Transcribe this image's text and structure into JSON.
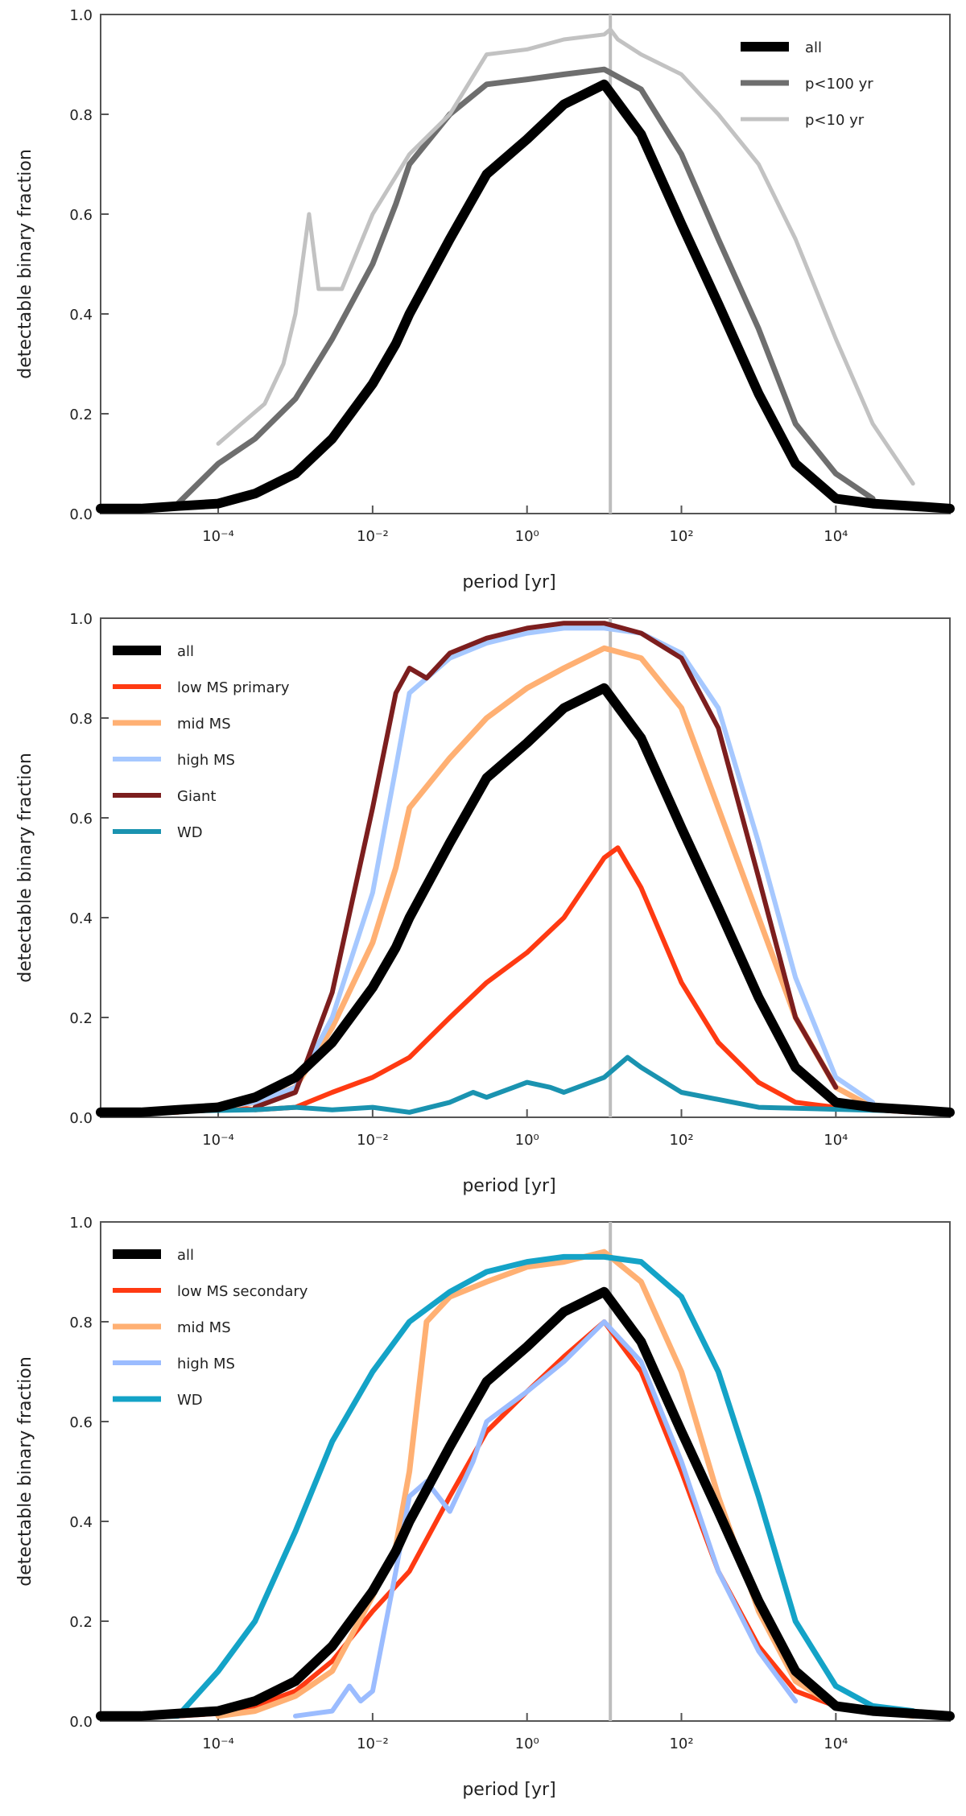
{
  "chart_data": [
    {
      "type": "line",
      "xscale": "log",
      "xlim": [
        3e-06,
        300000
      ],
      "ylim": [
        0,
        1
      ],
      "xlabel": "period [yr]",
      "ylabel": "detectable binary fraction",
      "xticks": [
        0.0001,
        0.01,
        1,
        100,
        10000
      ],
      "xtick_labels": [
        "10⁻⁴",
        "10⁻²",
        "10⁰",
        "10²",
        "10⁴"
      ],
      "yticks": [
        0,
        0.2,
        0.4,
        0.6,
        0.8,
        1.0
      ],
      "ytick_labels": [
        "0.0",
        "0.2",
        "0.4",
        "0.6",
        "0.8",
        "1.0"
      ],
      "vline_x": 12,
      "legend_position": "top-right",
      "series": [
        {
          "name": "all",
          "color": "#000000",
          "width": 12,
          "x": [
            3e-06,
            1e-05,
            3e-05,
            0.0001,
            0.0003,
            0.001,
            0.003,
            0.01,
            0.02,
            0.03,
            0.1,
            0.3,
            1,
            3,
            10,
            30,
            100,
            300,
            1000,
            3000,
            10000,
            30000,
            100000,
            300000
          ],
          "y": [
            0.01,
            0.01,
            0.015,
            0.02,
            0.04,
            0.08,
            0.15,
            0.26,
            0.34,
            0.4,
            0.55,
            0.68,
            0.75,
            0.82,
            0.86,
            0.76,
            0.58,
            0.42,
            0.24,
            0.1,
            0.03,
            0.02,
            0.015,
            0.01
          ]
        },
        {
          "name": "p<100 yr",
          "color": "#6e6e6e",
          "width": 7,
          "x": [
            3e-05,
            0.0001,
            0.0003,
            0.001,
            0.003,
            0.01,
            0.02,
            0.03,
            0.1,
            0.3,
            1,
            3,
            10,
            30,
            100,
            300,
            1000,
            3000,
            10000,
            30000
          ],
          "y": [
            0.02,
            0.1,
            0.15,
            0.23,
            0.35,
            0.5,
            0.62,
            0.7,
            0.8,
            0.86,
            0.87,
            0.88,
            0.89,
            0.85,
            0.72,
            0.55,
            0.37,
            0.18,
            0.08,
            0.03
          ]
        },
        {
          "name": "p<10 yr",
          "color": "#c2c2c2",
          "width": 5,
          "x": [
            0.0001,
            0.0002,
            0.0004,
            0.0007,
            0.001,
            0.0015,
            0.002,
            0.004,
            0.01,
            0.03,
            0.1,
            0.3,
            1,
            3,
            10,
            12,
            15,
            30,
            100,
            300,
            1000,
            3000,
            10000,
            30000,
            100000
          ],
          "y": [
            0.14,
            0.18,
            0.22,
            0.3,
            0.4,
            0.6,
            0.45,
            0.45,
            0.6,
            0.72,
            0.8,
            0.92,
            0.93,
            0.95,
            0.96,
            0.97,
            0.95,
            0.92,
            0.88,
            0.8,
            0.7,
            0.55,
            0.35,
            0.18,
            0.06
          ]
        }
      ]
    },
    {
      "type": "line",
      "xscale": "log",
      "xlim": [
        3e-06,
        300000
      ],
      "ylim": [
        0,
        1
      ],
      "xlabel": "period [yr]",
      "ylabel": "detectable binary fraction",
      "xticks": [
        0.0001,
        0.01,
        1,
        100,
        10000
      ],
      "xtick_labels": [
        "10⁻⁴",
        "10⁻²",
        "10⁰",
        "10²",
        "10⁴"
      ],
      "yticks": [
        0,
        0.2,
        0.4,
        0.6,
        0.8,
        1.0
      ],
      "ytick_labels": [
        "0.0",
        "0.2",
        "0.4",
        "0.6",
        "0.8",
        "1.0"
      ],
      "vline_x": 12,
      "legend_position": "top-left",
      "series": [
        {
          "name": "all",
          "color": "#000000",
          "width": 12,
          "x": [
            3e-06,
            1e-05,
            3e-05,
            0.0001,
            0.0003,
            0.001,
            0.003,
            0.01,
            0.02,
            0.03,
            0.1,
            0.3,
            1,
            3,
            10,
            30,
            100,
            300,
            1000,
            3000,
            10000,
            30000,
            100000,
            300000
          ],
          "y": [
            0.01,
            0.01,
            0.015,
            0.02,
            0.04,
            0.08,
            0.15,
            0.26,
            0.34,
            0.4,
            0.55,
            0.68,
            0.75,
            0.82,
            0.86,
            0.76,
            0.58,
            0.42,
            0.24,
            0.1,
            0.03,
            0.02,
            0.015,
            0.01
          ]
        },
        {
          "name": "low MS primary",
          "color": "#ff3a12",
          "width": 6,
          "x": [
            3e-06,
            3e-05,
            0.0001,
            0.0003,
            0.001,
            0.003,
            0.01,
            0.03,
            0.1,
            0.3,
            1,
            3,
            10,
            15,
            30,
            100,
            300,
            1000,
            3000,
            10000,
            100000,
            300000
          ],
          "y": [
            0.01,
            0.01,
            0.025,
            0.015,
            0.02,
            0.05,
            0.08,
            0.12,
            0.2,
            0.27,
            0.33,
            0.4,
            0.52,
            0.54,
            0.46,
            0.27,
            0.15,
            0.07,
            0.03,
            0.02,
            0.01,
            0.01
          ]
        },
        {
          "name": "mid MS",
          "color": "#ffb073",
          "width": 7,
          "x": [
            0.0001,
            0.0003,
            0.001,
            0.003,
            0.01,
            0.02,
            0.03,
            0.1,
            0.3,
            1,
            3,
            10,
            30,
            100,
            300,
            1000,
            3000,
            10000,
            30000
          ],
          "y": [
            0.02,
            0.03,
            0.06,
            0.18,
            0.35,
            0.5,
            0.62,
            0.72,
            0.8,
            0.86,
            0.9,
            0.94,
            0.92,
            0.82,
            0.62,
            0.4,
            0.2,
            0.06,
            0.02
          ]
        },
        {
          "name": "high MS",
          "color": "#a6c8ff",
          "width": 6,
          "x": [
            0.0001,
            0.0003,
            0.001,
            0.003,
            0.01,
            0.02,
            0.03,
            0.1,
            0.3,
            1,
            3,
            10,
            30,
            100,
            300,
            1000,
            3000,
            10000,
            30000
          ],
          "y": [
            0.02,
            0.03,
            0.06,
            0.2,
            0.45,
            0.7,
            0.85,
            0.92,
            0.95,
            0.97,
            0.98,
            0.98,
            0.97,
            0.93,
            0.82,
            0.55,
            0.28,
            0.08,
            0.03
          ]
        },
        {
          "name": "Giant",
          "color": "#7c1e1e",
          "width": 6,
          "x": [
            0.0003,
            0.001,
            0.003,
            0.01,
            0.02,
            0.03,
            0.05,
            0.1,
            0.3,
            1,
            3,
            10,
            30,
            100,
            300,
            1000,
            3000,
            10000
          ],
          "y": [
            0.02,
            0.05,
            0.25,
            0.62,
            0.85,
            0.9,
            0.88,
            0.93,
            0.96,
            0.98,
            0.99,
            0.99,
            0.97,
            0.92,
            0.78,
            0.48,
            0.2,
            0.06
          ]
        },
        {
          "name": "WD",
          "color": "#1a93b0",
          "width": 6,
          "x": [
            3e-06,
            0.0003,
            0.001,
            0.003,
            0.01,
            0.03,
            0.1,
            0.2,
            0.3,
            1,
            2,
            3,
            10,
            20,
            30,
            100,
            1000,
            300000
          ],
          "y": [
            0.01,
            0.015,
            0.02,
            0.015,
            0.02,
            0.01,
            0.03,
            0.05,
            0.04,
            0.07,
            0.06,
            0.05,
            0.08,
            0.12,
            0.1,
            0.05,
            0.02,
            0.01
          ]
        }
      ]
    },
    {
      "type": "line",
      "xscale": "log",
      "xlim": [
        3e-06,
        300000
      ],
      "ylim": [
        0,
        1
      ],
      "xlabel": "period [yr]",
      "ylabel": "detectable binary fraction",
      "xticks": [
        0.0001,
        0.01,
        1,
        100,
        10000
      ],
      "xtick_labels": [
        "10⁻⁴",
        "10⁻²",
        "10⁰",
        "10²",
        "10⁴"
      ],
      "yticks": [
        0,
        0.2,
        0.4,
        0.6,
        0.8,
        1.0
      ],
      "ytick_labels": [
        "0.0",
        "0.2",
        "0.4",
        "0.6",
        "0.8",
        "1.0"
      ],
      "vline_x": 12,
      "legend_position": "top-left",
      "series": [
        {
          "name": "all",
          "color": "#000000",
          "width": 12,
          "x": [
            3e-06,
            1e-05,
            3e-05,
            0.0001,
            0.0003,
            0.001,
            0.003,
            0.01,
            0.02,
            0.03,
            0.1,
            0.3,
            1,
            3,
            10,
            30,
            100,
            300,
            1000,
            3000,
            10000,
            30000,
            100000,
            300000
          ],
          "y": [
            0.01,
            0.01,
            0.015,
            0.02,
            0.04,
            0.08,
            0.15,
            0.26,
            0.34,
            0.4,
            0.55,
            0.68,
            0.75,
            0.82,
            0.86,
            0.76,
            0.58,
            0.42,
            0.24,
            0.1,
            0.03,
            0.02,
            0.015,
            0.01
          ]
        },
        {
          "name": "low MS secondary",
          "color": "#ff3a12",
          "width": 6,
          "x": [
            3e-06,
            3e-05,
            0.0001,
            0.0003,
            0.001,
            0.003,
            0.01,
            0.03,
            0.1,
            0.3,
            1,
            3,
            10,
            30,
            100,
            300,
            1000,
            3000,
            10000,
            30000,
            100000
          ],
          "y": [
            0.01,
            0.01,
            0.015,
            0.03,
            0.06,
            0.12,
            0.22,
            0.3,
            0.45,
            0.58,
            0.66,
            0.73,
            0.8,
            0.7,
            0.5,
            0.3,
            0.15,
            0.06,
            0.03,
            0.02,
            0.01
          ]
        },
        {
          "name": "mid MS",
          "color": "#ffb073",
          "width": 7,
          "x": [
            0.0001,
            0.0003,
            0.001,
            0.003,
            0.01,
            0.02,
            0.03,
            0.05,
            0.1,
            0.3,
            1,
            3,
            10,
            30,
            100,
            300,
            1000,
            3000,
            10000,
            30000,
            100000
          ],
          "y": [
            0.01,
            0.02,
            0.05,
            0.1,
            0.25,
            0.35,
            0.5,
            0.8,
            0.85,
            0.88,
            0.91,
            0.92,
            0.94,
            0.88,
            0.7,
            0.45,
            0.22,
            0.08,
            0.03,
            0.02,
            0.01
          ]
        },
        {
          "name": "high MS",
          "color": "#9bbcff",
          "width": 6,
          "x": [
            0.001,
            0.003,
            0.005,
            0.007,
            0.01,
            0.02,
            0.03,
            0.05,
            0.1,
            0.2,
            0.3,
            1,
            3,
            10,
            30,
            100,
            300,
            1000,
            3000
          ],
          "y": [
            0.01,
            0.02,
            0.07,
            0.04,
            0.06,
            0.3,
            0.45,
            0.48,
            0.42,
            0.52,
            0.6,
            0.66,
            0.72,
            0.8,
            0.72,
            0.52,
            0.3,
            0.14,
            0.04
          ]
        },
        {
          "name": "WD",
          "color": "#14a3c7",
          "width": 7,
          "x": [
            3e-06,
            3e-05,
            0.0001,
            0.0003,
            0.001,
            0.003,
            0.01,
            0.03,
            0.1,
            0.3,
            1,
            3,
            10,
            30,
            100,
            300,
            1000,
            3000,
            10000,
            30000,
            100000
          ],
          "y": [
            0.01,
            0.01,
            0.1,
            0.2,
            0.38,
            0.56,
            0.7,
            0.8,
            0.86,
            0.9,
            0.92,
            0.93,
            0.93,
            0.92,
            0.85,
            0.7,
            0.45,
            0.2,
            0.07,
            0.03,
            0.02
          ]
        }
      ]
    }
  ]
}
